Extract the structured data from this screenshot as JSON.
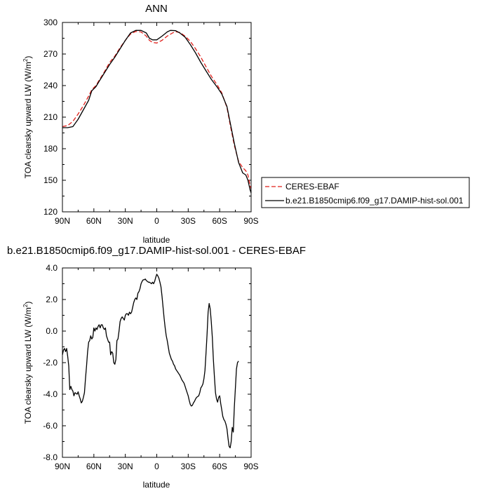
{
  "chart_data": [
    {
      "type": "line",
      "title": "ANN",
      "xlabel": "latitude",
      "ylabel_main": "TOA clearsky upward LW (W/m",
      "ylabel_sup": "2",
      "ylabel_end": ")",
      "xlim": [
        90,
        -90
      ],
      "ylim": [
        120,
        300
      ],
      "x_ticks": [
        90,
        60,
        30,
        0,
        -30,
        -60,
        -90
      ],
      "x_tick_labels": [
        "90N",
        "60N",
        "30N",
        "0",
        "30S",
        "60S",
        "90S"
      ],
      "y_ticks": [
        120,
        150,
        180,
        210,
        240,
        270,
        300
      ],
      "y_tick_labels": [
        "120",
        "150",
        "180",
        "210",
        "240",
        "270",
        "300"
      ],
      "legend_position": "right",
      "series": [
        {
          "name": "CERES-EBAF",
          "color": "#e0201b",
          "dash": "dashed",
          "points": [
            [
              90,
              201
            ],
            [
              85,
              202
            ],
            [
              80,
              206
            ],
            [
              75,
              213
            ],
            [
              70,
              221
            ],
            [
              65,
              230
            ],
            [
              62,
              236
            ],
            [
              58,
              240
            ],
            [
              55,
              245
            ],
            [
              50,
              253
            ],
            [
              45,
              262
            ],
            [
              40,
              268
            ],
            [
              35,
              276
            ],
            [
              30,
              283
            ],
            [
              25,
              289
            ],
            [
              20,
              291.5
            ],
            [
              15,
              291
            ],
            [
              10,
              287
            ],
            [
              7,
              283
            ],
            [
              4,
              281
            ],
            [
              0,
              280.5
            ],
            [
              -5,
              283
            ],
            [
              -10,
              287
            ],
            [
              -15,
              290
            ],
            [
              -18,
              291.2
            ],
            [
              -22,
              290.5
            ],
            [
              -27,
              287
            ],
            [
              -32,
              282
            ],
            [
              -37,
              275
            ],
            [
              -42,
              267
            ],
            [
              -47,
              258
            ],
            [
              -52,
              249
            ],
            [
              -58,
              240
            ],
            [
              -62,
              233
            ],
            [
              -67,
              219
            ],
            [
              -70,
              203
            ],
            [
              -74,
              183
            ],
            [
              -78,
              168
            ],
            [
              -82,
              162
            ],
            [
              -85,
              159
            ],
            [
              -87,
              155
            ],
            [
              -89,
              145
            ],
            [
              -90,
              142
            ]
          ]
        },
        {
          "name": "b.e21.B1850cmip6.f09_g17.DAMIP-hist-sol.001",
          "color": "#000000",
          "dash": "solid",
          "points": [
            [
              90,
              200
            ],
            [
              85,
              200
            ],
            [
              80,
              201
            ],
            [
              75,
              208
            ],
            [
              70,
              217
            ],
            [
              65,
              226
            ],
            [
              62,
              235
            ],
            [
              58,
              239
            ],
            [
              55,
              244
            ],
            [
              50,
              252
            ],
            [
              45,
              260
            ],
            [
              40,
              267
            ],
            [
              35,
              275
            ],
            [
              30,
              283
            ],
            [
              25,
              290
            ],
            [
              20,
              292.5
            ],
            [
              15,
              292.5
            ],
            [
              10,
              290
            ],
            [
              7,
              285
            ],
            [
              4,
              283.5
            ],
            [
              0,
              283.5
            ],
            [
              -5,
              287
            ],
            [
              -10,
              291
            ],
            [
              -13,
              292.5
            ],
            [
              -18,
              292.2
            ],
            [
              -22,
              290
            ],
            [
              -27,
              286
            ],
            [
              -32,
              279
            ],
            [
              -37,
              271
            ],
            [
              -42,
              262
            ],
            [
              -47,
              254
            ],
            [
              -52,
              246
            ],
            [
              -58,
              238
            ],
            [
              -62,
              232
            ],
            [
              -67,
              220
            ],
            [
              -70,
              205
            ],
            [
              -74,
              185
            ],
            [
              -78,
              167
            ],
            [
              -82,
              157
            ],
            [
              -85,
              155
            ],
            [
              -87,
              150
            ],
            [
              -89,
              141
            ],
            [
              -90,
              138
            ]
          ]
        }
      ]
    },
    {
      "type": "line",
      "title": "b.e21.B1850cmip6.f09_g17.DAMIP-hist-sol.001 - CERES-EBAF",
      "xlabel": "latitude",
      "ylabel_main": "TOA clearsky upward LW (W/m",
      "ylabel_sup": "2",
      "ylabel_end": ")",
      "xlim": [
        90,
        -90
      ],
      "ylim": [
        -8,
        4
      ],
      "x_ticks": [
        90,
        60,
        30,
        0,
        -30,
        -60,
        -90
      ],
      "x_tick_labels": [
        "90N",
        "60N",
        "30N",
        "0",
        "30S",
        "60S",
        "90S"
      ],
      "y_ticks": [
        -8,
        -6,
        -4,
        -2,
        0,
        2,
        4
      ],
      "y_tick_labels": [
        "-8.0",
        "-6.0",
        "-4.0",
        "-2.0",
        "0.0",
        "2.0",
        "4.0"
      ],
      "series": [
        {
          "color": "#000000",
          "dash": "solid",
          "points": [
            [
              90,
              -1.5
            ],
            [
              89,
              -1.2
            ],
            [
              88,
              -1.1
            ],
            [
              87,
              -1.3
            ],
            [
              86,
              -1.1
            ],
            [
              85,
              -1.6
            ],
            [
              84,
              -2.2
            ],
            [
              83,
              -3.7
            ],
            [
              82,
              -3.5
            ],
            [
              81,
              -3.7
            ],
            [
              80,
              -3.8
            ],
            [
              79,
              -4.1
            ],
            [
              78,
              -3.9
            ],
            [
              77,
              -3.95
            ],
            [
              76,
              -4.0
            ],
            [
              75,
              -3.85
            ],
            [
              74,
              -4.1
            ],
            [
              73,
              -4.3
            ],
            [
              72,
              -4.55
            ],
            [
              71,
              -4.45
            ],
            [
              70,
              -4.2
            ],
            [
              69,
              -3.9
            ],
            [
              68,
              -3.0
            ],
            [
              67,
              -2.2
            ],
            [
              66,
              -1.3
            ],
            [
              65,
              -0.7
            ],
            [
              64,
              -0.6
            ],
            [
              63,
              -0.3
            ],
            [
              62,
              -0.5
            ],
            [
              61,
              -0.4
            ],
            [
              60,
              0.2
            ],
            [
              59,
              0.0
            ],
            [
              58,
              0.2
            ],
            [
              57,
              0.1
            ],
            [
              56,
              0.3
            ],
            [
              55,
              0.4
            ],
            [
              54,
              0.2
            ],
            [
              53,
              0.4
            ],
            [
              52,
              0.4
            ],
            [
              51,
              0.2
            ],
            [
              50,
              0.1
            ],
            [
              49,
              0.2
            ],
            [
              48,
              -0.3
            ],
            [
              47,
              -0.5
            ],
            [
              46,
              -0.7
            ],
            [
              45,
              -0.7
            ],
            [
              44,
              -1.5
            ],
            [
              43,
              -1.3
            ],
            [
              42,
              -1.4
            ],
            [
              41,
              -2.0
            ],
            [
              40,
              -2.1
            ],
            [
              39,
              -1.8
            ],
            [
              38,
              -0.6
            ],
            [
              37,
              -0.5
            ],
            [
              36,
              0.0
            ],
            [
              35,
              0.6
            ],
            [
              34,
              0.8
            ],
            [
              33,
              0.9
            ],
            [
              32,
              0.8
            ],
            [
              31,
              0.7
            ],
            [
              30,
              1.0
            ],
            [
              29,
              1.1
            ],
            [
              28,
              1.1
            ],
            [
              27,
              1.0
            ],
            [
              26,
              1.2
            ],
            [
              25,
              1.1
            ],
            [
              24,
              1.2
            ],
            [
              23,
              1.5
            ],
            [
              22,
              1.8
            ],
            [
              21,
              2.0
            ],
            [
              20,
              2.1
            ],
            [
              19,
              2.0
            ],
            [
              18,
              2.4
            ],
            [
              17,
              2.5
            ],
            [
              16,
              2.7
            ],
            [
              15,
              3.0
            ],
            [
              14,
              3.15
            ],
            [
              13,
              3.25
            ],
            [
              12,
              3.25
            ],
            [
              11,
              3.3
            ],
            [
              10,
              3.2
            ],
            [
              9,
              3.15
            ],
            [
              8,
              3.1
            ],
            [
              7,
              3.1
            ],
            [
              6,
              3.05
            ],
            [
              5,
              3.0
            ],
            [
              4,
              3.1
            ],
            [
              3,
              3.0
            ],
            [
              2,
              3.15
            ],
            [
              1,
              3.4
            ],
            [
              0,
              3.6
            ],
            [
              -1,
              3.5
            ],
            [
              -2,
              3.35
            ],
            [
              -3,
              3.1
            ],
            [
              -4,
              2.8
            ],
            [
              -5,
              2.2
            ],
            [
              -6,
              1.5
            ],
            [
              -7,
              0.8
            ],
            [
              -8,
              0.2
            ],
            [
              -9,
              -0.3
            ],
            [
              -10,
              -0.6
            ],
            [
              -11,
              -1.0
            ],
            [
              -12,
              -1.4
            ],
            [
              -13,
              -1.6
            ],
            [
              -14,
              -1.8
            ],
            [
              -15,
              -1.9
            ],
            [
              -16,
              -2.1
            ],
            [
              -17,
              -2.2
            ],
            [
              -18,
              -2.4
            ],
            [
              -19,
              -2.5
            ],
            [
              -20,
              -2.6
            ],
            [
              -21,
              -2.7
            ],
            [
              -22,
              -2.8
            ],
            [
              -23,
              -2.95
            ],
            [
              -24,
              -3.1
            ],
            [
              -25,
              -3.2
            ],
            [
              -26,
              -3.3
            ],
            [
              -27,
              -3.5
            ],
            [
              -28,
              -3.7
            ],
            [
              -29,
              -3.9
            ],
            [
              -30,
              -4.1
            ],
            [
              -31,
              -4.4
            ],
            [
              -32,
              -4.65
            ],
            [
              -33,
              -4.75
            ],
            [
              -34,
              -4.7
            ],
            [
              -35,
              -4.55
            ],
            [
              -36,
              -4.45
            ],
            [
              -37,
              -4.3
            ],
            [
              -38,
              -4.2
            ],
            [
              -39,
              -4.15
            ],
            [
              -40,
              -4.1
            ],
            [
              -41,
              -3.9
            ],
            [
              -42,
              -3.6
            ],
            [
              -43,
              -3.5
            ],
            [
              -44,
              -3.35
            ],
            [
              -45,
              -3.0
            ],
            [
              -46,
              -2.5
            ],
            [
              -47,
              -1.4
            ],
            [
              -48,
              -0.2
            ],
            [
              -49,
              1.2
            ],
            [
              -50,
              1.75
            ],
            [
              -51,
              1.4
            ],
            [
              -52,
              0.6
            ],
            [
              -53,
              -0.4
            ],
            [
              -54,
              -1.8
            ],
            [
              -55,
              -2.9
            ],
            [
              -56,
              -3.9
            ],
            [
              -57,
              -4.3
            ],
            [
              -58,
              -4.5
            ],
            [
              -59,
              -4.2
            ],
            [
              -60,
              -4.1
            ],
            [
              -61,
              -4.6
            ],
            [
              -62,
              -5.0
            ],
            [
              -63,
              -5.4
            ],
            [
              -64,
              -5.6
            ],
            [
              -65,
              -5.7
            ],
            [
              -66,
              -5.9
            ],
            [
              -67,
              -6.2
            ],
            [
              -68,
              -6.8
            ],
            [
              -69,
              -7.3
            ],
            [
              -70,
              -7.4
            ],
            [
              -71,
              -7.0
            ],
            [
              -72,
              -6.1
            ],
            [
              -73,
              -6.4
            ],
            [
              -74,
              -4.8
            ],
            [
              -75,
              -3.6
            ],
            [
              -76,
              -2.4
            ],
            [
              -77,
              -2.0
            ],
            [
              -78,
              -1.9
            ]
          ]
        }
      ]
    }
  ]
}
